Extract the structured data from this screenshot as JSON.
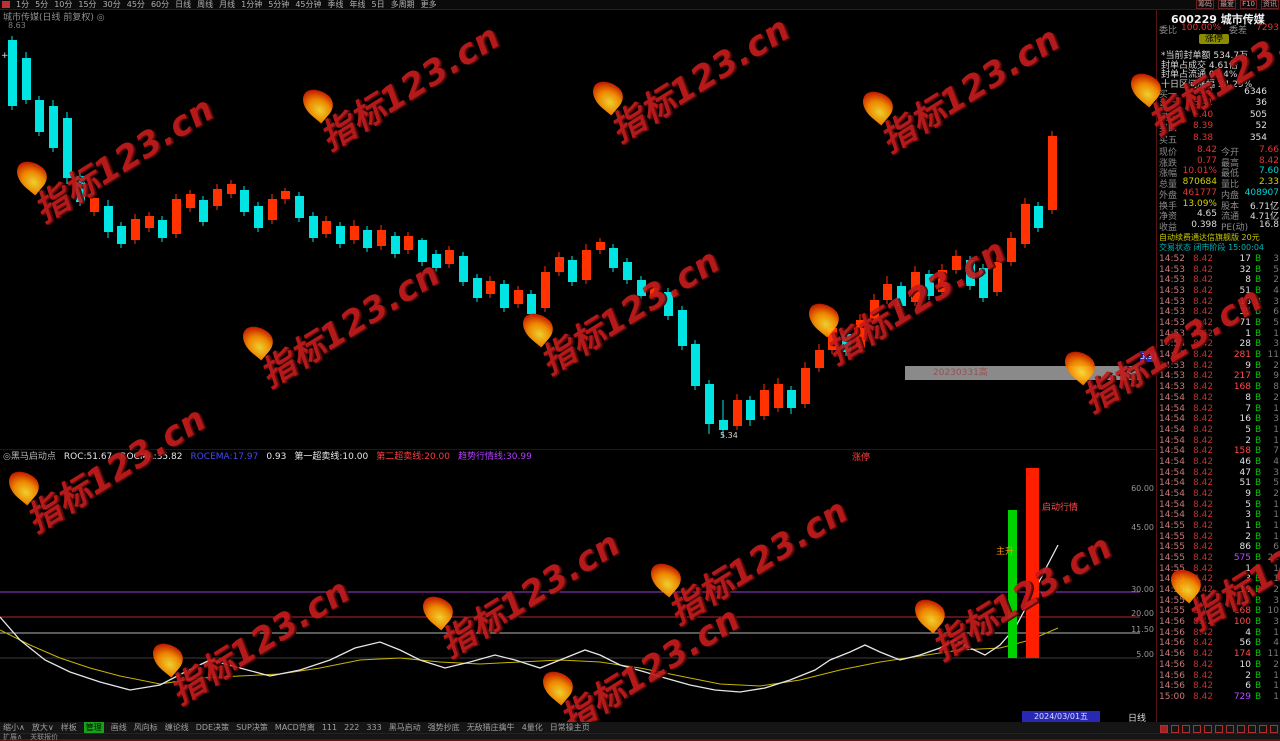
{
  "watermark": {
    "text": "指标123.cn"
  },
  "topbar": {
    "periods": [
      "1分",
      "5分",
      "10分",
      "15分",
      "30分",
      "45分",
      "60分",
      "日线",
      "周线",
      "月线",
      "1分钟",
      "5分钟",
      "45分钟",
      "季线",
      "年线",
      "5日",
      "多周期",
      "更多"
    ],
    "right_items": [
      "筹码",
      "最爱",
      "F10",
      "资讯"
    ]
  },
  "chart": {
    "title": "城市传媒(日线 前复权) ◎",
    "avg_label": "8.63",
    "low_label": "5.34",
    "gray_bar_label": "20230331高",
    "price_marker": "5.91",
    "event_label": "涨停",
    "up_color": "#ff3200",
    "down_color": "#00e4e4",
    "candles": [
      [
        12,
        36,
        40,
        106,
        110,
        0
      ],
      [
        26,
        52,
        58,
        100,
        104,
        0
      ],
      [
        39,
        96,
        100,
        132,
        136,
        0
      ],
      [
        53,
        100,
        106,
        148,
        152,
        0
      ],
      [
        67,
        112,
        118,
        178,
        184,
        0
      ],
      [
        80,
        172,
        176,
        202,
        206,
        0
      ],
      [
        94,
        192,
        212,
        198,
        216,
        1
      ],
      [
        108,
        200,
        206,
        232,
        238,
        0
      ],
      [
        121,
        222,
        226,
        244,
        248,
        0
      ],
      [
        135,
        214,
        240,
        219,
        244,
        1
      ],
      [
        149,
        212,
        228,
        216,
        232,
        1
      ],
      [
        162,
        216,
        220,
        238,
        242,
        0
      ],
      [
        176,
        194,
        234,
        199,
        238,
        1
      ],
      [
        190,
        190,
        208,
        194,
        212,
        1
      ],
      [
        203,
        196,
        200,
        222,
        226,
        0
      ],
      [
        217,
        184,
        206,
        189,
        210,
        1
      ],
      [
        231,
        180,
        194,
        184,
        198,
        1
      ],
      [
        244,
        186,
        190,
        212,
        216,
        0
      ],
      [
        258,
        202,
        206,
        228,
        232,
        0
      ],
      [
        272,
        194,
        220,
        199,
        224,
        1
      ],
      [
        285,
        188,
        199,
        191,
        204,
        1
      ],
      [
        299,
        192,
        196,
        218,
        222,
        0
      ],
      [
        313,
        212,
        216,
        238,
        242,
        0
      ],
      [
        326,
        216,
        234,
        221,
        238,
        1
      ],
      [
        340,
        222,
        226,
        244,
        248,
        0
      ],
      [
        354,
        220,
        240,
        226,
        244,
        1
      ],
      [
        367,
        226,
        230,
        248,
        252,
        0
      ],
      [
        381,
        225,
        246,
        230,
        250,
        1
      ],
      [
        395,
        232,
        236,
        254,
        258,
        0
      ],
      [
        408,
        232,
        250,
        236,
        254,
        1
      ],
      [
        422,
        238,
        240,
        262,
        266,
        0
      ],
      [
        436,
        250,
        254,
        268,
        272,
        0
      ],
      [
        449,
        246,
        264,
        250,
        268,
        1
      ],
      [
        463,
        252,
        256,
        282,
        286,
        0
      ],
      [
        477,
        274,
        278,
        298,
        302,
        0
      ],
      [
        490,
        276,
        294,
        281,
        298,
        1
      ],
      [
        504,
        280,
        284,
        308,
        312,
        0
      ],
      [
        518,
        286,
        304,
        290,
        308,
        1
      ],
      [
        531,
        290,
        294,
        314,
        318,
        0
      ],
      [
        545,
        266,
        308,
        272,
        312,
        1
      ],
      [
        559,
        252,
        272,
        257,
        276,
        1
      ],
      [
        572,
        256,
        260,
        282,
        286,
        0
      ],
      [
        586,
        244,
        280,
        250,
        284,
        1
      ],
      [
        600,
        238,
        250,
        242,
        254,
        1
      ],
      [
        613,
        244,
        248,
        268,
        272,
        0
      ],
      [
        627,
        258,
        262,
        280,
        284,
        0
      ],
      [
        641,
        276,
        280,
        296,
        300,
        0
      ],
      [
        654,
        284,
        296,
        288,
        300,
        1
      ],
      [
        668,
        288,
        292,
        316,
        320,
        0
      ],
      [
        682,
        306,
        310,
        346,
        350,
        0
      ],
      [
        695,
        340,
        344,
        386,
        390,
        0
      ],
      [
        709,
        380,
        384,
        424,
        434,
        0
      ],
      [
        723,
        400,
        420,
        430,
        437,
        0
      ],
      [
        737,
        394,
        426,
        400,
        430,
        1
      ],
      [
        750,
        396,
        400,
        420,
        426,
        0
      ],
      [
        764,
        384,
        416,
        390,
        420,
        1
      ],
      [
        778,
        378,
        408,
        384,
        412,
        1
      ],
      [
        791,
        386,
        390,
        408,
        414,
        0
      ],
      [
        805,
        362,
        404,
        368,
        408,
        1
      ],
      [
        819,
        344,
        368,
        350,
        372,
        1
      ],
      [
        832,
        322,
        350,
        328,
        354,
        1
      ],
      [
        846,
        330,
        334,
        352,
        356,
        0
      ],
      [
        860,
        314,
        348,
        320,
        352,
        1
      ],
      [
        874,
        294,
        320,
        300,
        324,
        1
      ],
      [
        887,
        276,
        300,
        284,
        304,
        1
      ],
      [
        901,
        282,
        286,
        306,
        310,
        0
      ],
      [
        915,
        266,
        302,
        272,
        306,
        1
      ],
      [
        929,
        270,
        274,
        296,
        300,
        0
      ],
      [
        942,
        264,
        292,
        270,
        296,
        1
      ],
      [
        956,
        250,
        270,
        256,
        274,
        1
      ],
      [
        970,
        256,
        260,
        286,
        290,
        0
      ],
      [
        983,
        264,
        268,
        298,
        302,
        0
      ],
      [
        997,
        256,
        292,
        262,
        296,
        1
      ],
      [
        1011,
        232,
        262,
        238,
        266,
        1
      ],
      [
        1025,
        198,
        244,
        204,
        248,
        1
      ],
      [
        1038,
        202,
        206,
        228,
        232,
        0
      ],
      [
        1052,
        131,
        210,
        136,
        214,
        1
      ]
    ]
  },
  "indicator": {
    "segments": [
      {
        "text": "◎黑马启动点",
        "color": "#b4b4b4"
      },
      {
        "text": "ROC:51.67",
        "color": "#e6e6e6"
      },
      {
        "text": "ROCMA:35.82",
        "color": "#e6e6e6"
      },
      {
        "text": "ROCEMA:17.97",
        "color": "#4646ff"
      },
      {
        "text": "0.93",
        "color": "#e6e6e6"
      },
      {
        "text": "第一超卖线:10.00",
        "color": "#e6e6e6"
      },
      {
        "text": "第二超卖线:20.00",
        "color": "#ff3c3c"
      },
      {
        "text": "趋势行情线:30.99",
        "color": "#b43cff"
      }
    ],
    "axis_labels": [
      [
        "60.00",
        488
      ],
      [
        "45.00",
        527
      ],
      [
        "30.00",
        589
      ],
      [
        "20.00",
        613
      ],
      [
        "11.50",
        629
      ],
      [
        "5.00",
        654
      ]
    ],
    "hlines": [
      [
        592,
        "#a03cc8"
      ],
      [
        617,
        "#b42828"
      ],
      [
        633,
        "#b4b4b4"
      ],
      [
        658,
        "#3c3c3c"
      ]
    ],
    "white_line": "0,617 20,640 45,660 70,672 100,682 130,690 160,685 185,672 210,660 240,668 270,676 300,670 330,660 355,648 380,642 400,650 420,660 445,668 470,662 495,655 515,660 540,668 560,660 585,650 600,655 620,665 645,672 665,678 690,685 715,690 740,692 765,688 790,680 815,670 830,660 850,652 865,645 880,652 900,660 920,655 940,648 955,640 970,648 985,655 1000,645 1015,628 1030,600 1045,570 1058,545",
    "yellow_line": "0,630 30,645 60,658 90,668 120,676 160,684 200,678 240,676 280,674 320,668 360,660 400,658 440,662 480,664 520,662 560,660 600,662 640,668 680,676 720,684 760,686 800,680 840,670 880,662 920,656 960,650 1000,648 1030,640 1058,628",
    "green_bar": [
      1008,
      9,
      510,
      658
    ],
    "red_bar": [
      1026,
      13,
      468,
      658
    ],
    "red_bar_label": "启动行情",
    "green_bar_label": "主升"
  },
  "xaxis": {
    "date": "2024/03/01五",
    "period": "日线"
  },
  "quote": {
    "title": "600229 城市传媒",
    "weibi_label": "委比",
    "weibi": "100.00%",
    "weicha_label": "委差",
    "weicha": "7293",
    "badge": "涨停",
    "info_lines": [
      "*当前封单额 534.7万",
      "封单占成交 4.61倍",
      "封单占流通 0.34%",
      "十日区间涨幅 34.29%"
    ],
    "bids": [
      [
        "买一",
        "8.42",
        "6346"
      ],
      [
        "买二",
        "8.41",
        "36"
      ],
      [
        "买三",
        "8.40",
        "505"
      ],
      [
        "买四",
        "8.39",
        "52"
      ],
      [
        "买五",
        "8.38",
        "354"
      ]
    ],
    "stats": [
      [
        "现价",
        "8.42",
        "r"
      ],
      [
        "今开",
        "7.66",
        "r"
      ],
      [
        "涨跌",
        "0.77",
        "r"
      ],
      [
        "最高",
        "8.42",
        "r"
      ],
      [
        "涨幅",
        "10.01%",
        "r"
      ],
      [
        "最低",
        "7.60",
        "g"
      ],
      [
        "总量",
        "870684",
        "y"
      ],
      [
        "量比",
        "2.33",
        "y"
      ],
      [
        "外盘",
        "461777",
        "r"
      ],
      [
        "内盘",
        "408907",
        "g"
      ],
      [
        "换手",
        "13.09%",
        "y"
      ],
      [
        "股本",
        "6.71亿",
        "w"
      ],
      [
        "净资",
        "4.65",
        "w"
      ],
      [
        "流通",
        "4.71亿",
        "w"
      ],
      [
        "收益",
        "0.398",
        "w"
      ],
      [
        "PE(动)",
        "16.8",
        "w"
      ]
    ],
    "ad_line": "自动续费通达信旗舰版 20元",
    "status_line": "交易状态 闭市阶段 15:00:04",
    "tape": [
      [
        "14:52",
        "8.42",
        17,
        3
      ],
      [
        "14:53",
        "8.42",
        32,
        5
      ],
      [
        "14:53",
        "8.42",
        8,
        2
      ],
      [
        "14:53",
        "8.42",
        51,
        4
      ],
      [
        "14:53",
        "8.42",
        18,
        3
      ],
      [
        "14:53",
        "8.42",
        35,
        6
      ],
      [
        "14:53",
        "8.42",
        71,
        5
      ],
      [
        "14:53",
        "8.42",
        1,
        1
      ],
      [
        "14:53",
        "8.42",
        28,
        3
      ],
      [
        "14:53",
        "8.42",
        281,
        11
      ],
      [
        "14:53",
        "8.42",
        9,
        2
      ],
      [
        "14:53",
        "8.42",
        217,
        9
      ],
      [
        "14:53",
        "8.42",
        168,
        8
      ],
      [
        "14:54",
        "8.42",
        8,
        2
      ],
      [
        "14:54",
        "8.42",
        7,
        1
      ],
      [
        "14:54",
        "8.42",
        16,
        3
      ],
      [
        "14:54",
        "8.42",
        5,
        1
      ],
      [
        "14:54",
        "8.42",
        2,
        1
      ],
      [
        "14:54",
        "8.42",
        158,
        7
      ],
      [
        "14:54",
        "8.42",
        46,
        4
      ],
      [
        "14:54",
        "8.42",
        47,
        3
      ],
      [
        "14:54",
        "8.42",
        51,
        5
      ],
      [
        "14:54",
        "8.42",
        9,
        2
      ],
      [
        "14:54",
        "8.42",
        5,
        1
      ],
      [
        "14:54",
        "8.42",
        3,
        1
      ],
      [
        "14:55",
        "8.42",
        1,
        1
      ],
      [
        "14:55",
        "8.42",
        2,
        1
      ],
      [
        "14:55",
        "8.42",
        86,
        6
      ],
      [
        "14:55",
        "8.42",
        575,
        21
      ],
      [
        "14:55",
        "8.42",
        1,
        1
      ],
      [
        "14:55",
        "8.42",
        3,
        1
      ],
      [
        "14:55",
        "8.42",
        10,
        2
      ],
      [
        "14:55",
        "8.42",
        12,
        3
      ],
      [
        "14:55",
        "8.42",
        168,
        10
      ],
      [
        "14:56",
        "8.42",
        100,
        3
      ],
      [
        "14:56",
        "8.42",
        4,
        1
      ],
      [
        "14:56",
        "8.42",
        56,
        4
      ],
      [
        "14:56",
        "8.42",
        174,
        11
      ],
      [
        "14:56",
        "8.42",
        10,
        2
      ],
      [
        "14:56",
        "8.42",
        2,
        1
      ],
      [
        "14:56",
        "8.42",
        6,
        1
      ],
      [
        "15:00",
        "8.42",
        729,
        1
      ]
    ]
  },
  "toolbar": {
    "items": [
      "缩小∧",
      "放大∨",
      "样板",
      "管理",
      "画线",
      "风向标",
      "缠论线",
      "DDE决策",
      "SUP决策",
      "MACD背离",
      "111",
      "222",
      "333",
      "黑马启动",
      "强势抄底",
      "无敌猎庄擒牛",
      "4量化",
      "日常操主页"
    ],
    "active_index": 3,
    "row2": [
      "扩展∧",
      "关联报价"
    ]
  }
}
